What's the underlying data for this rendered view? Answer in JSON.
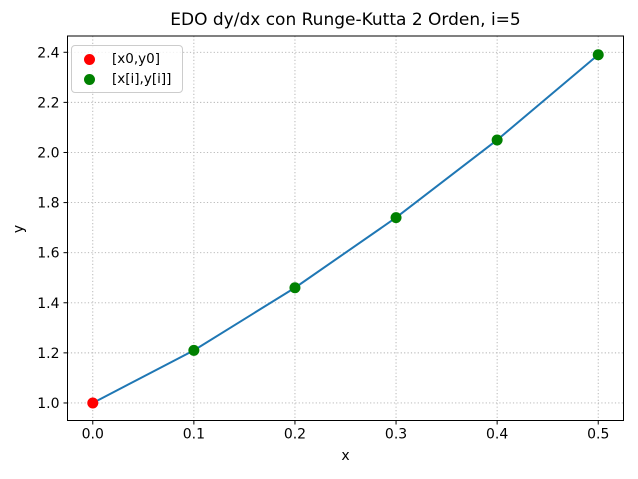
{
  "figure": {
    "background": "#ffffff"
  },
  "chart_data": {
    "type": "line",
    "title": "EDO dy/dx con Runge-Kutta 2 Orden, i=5",
    "xlabel": "x",
    "ylabel": "y",
    "x": [
      0.0,
      0.1,
      0.2,
      0.3,
      0.4,
      0.5
    ],
    "y": [
      1.0,
      1.21,
      1.46,
      1.74,
      2.05,
      2.39
    ],
    "line_color": "#1f77b4",
    "initial_point": {
      "x": 0.0,
      "y": 1.0,
      "color": "#ff0000"
    },
    "step_points_color": "#008000",
    "xlim": [
      -0.025,
      0.525
    ],
    "ylim": [
      0.93,
      2.465
    ],
    "xticks": {
      "values": [
        0.0,
        0.1,
        0.2,
        0.3,
        0.4,
        0.5
      ],
      "labels": [
        "0.0",
        "0.1",
        "0.2",
        "0.3",
        "0.4",
        "0.5"
      ]
    },
    "yticks": {
      "values": [
        1.0,
        1.2,
        1.4,
        1.6,
        1.8,
        2.0,
        2.2,
        2.4
      ],
      "labels": [
        "1.0",
        "1.2",
        "1.4",
        "1.6",
        "1.8",
        "2.0",
        "2.2",
        "2.4"
      ]
    },
    "grid": true,
    "grid_color": "#b0b0b0",
    "spine_color": "#000000",
    "legend": {
      "position": "upper left",
      "items": [
        {
          "label": "[x0,y0]",
          "color": "#ff0000"
        },
        {
          "label": "[x[i],y[i]]",
          "color": "#008000"
        }
      ]
    }
  }
}
